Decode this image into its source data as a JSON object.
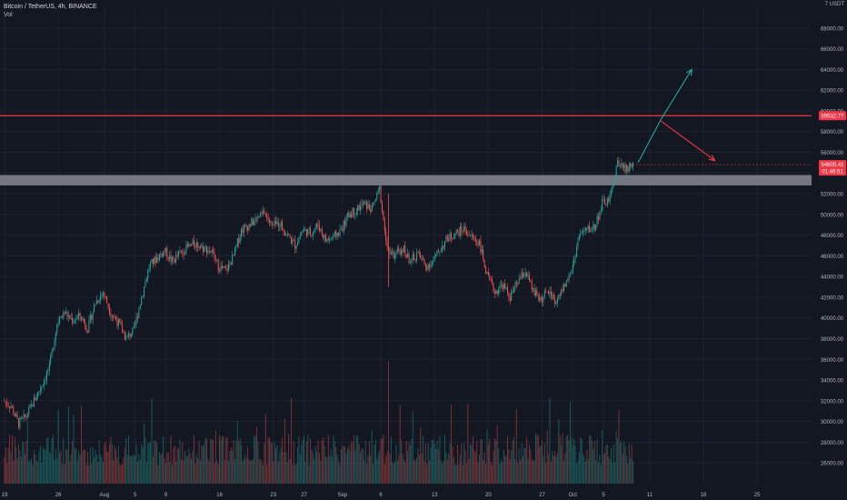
{
  "header": {
    "symbol": "Bitcoin / TetherUS, 4h, BINANCE",
    "volume_label": "Vol",
    "currency": "USDT"
  },
  "colors": {
    "background": "#131722",
    "up": "#26a69a",
    "down": "#ef5350",
    "grid": "#1e2230",
    "resistance_line": "#f23645",
    "support_zone": "#9598a1",
    "arrow_up": "#26a69a",
    "arrow_down": "#f23645"
  },
  "chart_data": {
    "type": "candlestick",
    "timeframe": "4h",
    "ylim": [
      24000,
      70000
    ],
    "y_ticks": [
      26000,
      28000,
      30000,
      32000,
      34000,
      36000,
      38000,
      40000,
      42000,
      44000,
      46000,
      48000,
      50000,
      52000,
      54000,
      56000,
      58000,
      60000,
      62000,
      64000,
      66000,
      68000
    ],
    "y_tick_labels": [
      "26000.00",
      "28000.00",
      "30000.00",
      "32000.00",
      "34000.00",
      "36000.00",
      "38000.00",
      "40000.00",
      "42000.00",
      "44000.00",
      "46000.00",
      "48000.00",
      "50000.00",
      "52000.00",
      "54000.00",
      "56000.00",
      "58000.00",
      "60000.00",
      "62000.00",
      "64000.00",
      "66000.00",
      "68000.00"
    ],
    "y_top_label": "7",
    "x_ticks": [
      {
        "label": "19",
        "day": 0
      },
      {
        "label": "26",
        "day": 7
      },
      {
        "label": "Aug",
        "day": 13
      },
      {
        "label": "5",
        "day": 17
      },
      {
        "label": "9",
        "day": 21
      },
      {
        "label": "16",
        "day": 28
      },
      {
        "label": "23",
        "day": 35
      },
      {
        "label": "27",
        "day": 39
      },
      {
        "label": "Sep",
        "day": 44
      },
      {
        "label": "6",
        "day": 49
      },
      {
        "label": "13",
        "day": 56
      },
      {
        "label": "20",
        "day": 63
      },
      {
        "label": "27",
        "day": 70
      },
      {
        "label": "Oct",
        "day": 74
      },
      {
        "label": "5",
        "day": 78
      },
      {
        "label": "11",
        "day": 84
      },
      {
        "label": "18",
        "day": 91
      },
      {
        "label": "25",
        "day": 98
      }
    ],
    "last_day": 82,
    "price_path": [
      [
        0,
        32000
      ],
      [
        1,
        31500
      ],
      [
        2,
        29800
      ],
      [
        3,
        30500
      ],
      [
        4,
        32000
      ],
      [
        5,
        33500
      ],
      [
        6,
        35200
      ],
      [
        7,
        39500
      ],
      [
        8,
        40500
      ],
      [
        9,
        39800
      ],
      [
        10,
        40200
      ],
      [
        11,
        39000
      ],
      [
        12,
        41500
      ],
      [
        13,
        42500
      ],
      [
        14,
        40500
      ],
      [
        15,
        39500
      ],
      [
        16,
        38000
      ],
      [
        17,
        38800
      ],
      [
        18,
        42000
      ],
      [
        19,
        45000
      ],
      [
        20,
        45800
      ],
      [
        21,
        46500
      ],
      [
        22,
        45500
      ],
      [
        23,
        46200
      ],
      [
        24,
        46800
      ],
      [
        25,
        47200
      ],
      [
        26,
        46800
      ],
      [
        27,
        46500
      ],
      [
        28,
        45000
      ],
      [
        29,
        44500
      ],
      [
        30,
        46000
      ],
      [
        31,
        48500
      ],
      [
        32,
        49000
      ],
      [
        33,
        49500
      ],
      [
        34,
        50200
      ],
      [
        35,
        48800
      ],
      [
        36,
        49200
      ],
      [
        37,
        48000
      ],
      [
        38,
        47000
      ],
      [
        39,
        48500
      ],
      [
        40,
        48200
      ],
      [
        41,
        49000
      ],
      [
        42,
        47500
      ],
      [
        43,
        47800
      ],
      [
        44,
        48500
      ],
      [
        45,
        50000
      ],
      [
        46,
        50500
      ],
      [
        47,
        51000
      ],
      [
        48,
        50500
      ],
      [
        49,
        52500
      ],
      [
        50,
        46500
      ],
      [
        51,
        46000
      ],
      [
        52,
        46800
      ],
      [
        53,
        45500
      ],
      [
        54,
        46200
      ],
      [
        55,
        45000
      ],
      [
        56,
        45500
      ],
      [
        57,
        46800
      ],
      [
        58,
        47800
      ],
      [
        59,
        48200
      ],
      [
        60,
        48600
      ],
      [
        61,
        47800
      ],
      [
        62,
        47300
      ],
      [
        63,
        44000
      ],
      [
        64,
        42500
      ],
      [
        65,
        43200
      ],
      [
        66,
        42000
      ],
      [
        67,
        43500
      ],
      [
        68,
        44500
      ],
      [
        69,
        42500
      ],
      [
        70,
        41800
      ],
      [
        71,
        42600
      ],
      [
        72,
        41500
      ],
      [
        73,
        43000
      ],
      [
        74,
        44500
      ],
      [
        75,
        48000
      ],
      [
        76,
        48500
      ],
      [
        77,
        48800
      ],
      [
        78,
        51000
      ],
      [
        79,
        51500
      ],
      [
        80,
        55000
      ],
      [
        81,
        54300
      ],
      [
        82,
        54800
      ]
    ],
    "volume_spikes": [
      {
        "day": 7,
        "rel": 0.6
      },
      {
        "day": 50,
        "rel": 1.0
      },
      {
        "day": 71,
        "rel": 0.7
      },
      {
        "day": 80,
        "rel": 0.6
      }
    ],
    "resistance_level": 59532.77,
    "resistance_label": "59532.77",
    "support_zone": [
      52800,
      53800
    ],
    "current_price": 54805.41,
    "current_price_label": "54805.41",
    "countdown_label": "01:46:51",
    "projection_up": {
      "from": [
        82.5,
        55000
      ],
      "mid": [
        85.5,
        59200
      ],
      "to": [
        89.5,
        64000
      ]
    },
    "projection_down": {
      "from": [
        85.5,
        59000
      ],
      "to": [
        92.5,
        55200
      ]
    }
  }
}
